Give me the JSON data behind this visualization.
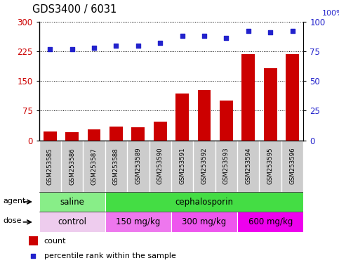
{
  "title": "GDS3400 / 6031",
  "samples": [
    "GSM253585",
    "GSM253586",
    "GSM253587",
    "GSM253588",
    "GSM253589",
    "GSM253590",
    "GSM253591",
    "GSM253592",
    "GSM253593",
    "GSM253594",
    "GSM253595",
    "GSM253596"
  ],
  "counts": [
    22,
    20,
    27,
    35,
    34,
    47,
    118,
    128,
    100,
    218,
    182,
    218
  ],
  "percentile_ranks": [
    77,
    77,
    78,
    80,
    80,
    82,
    88,
    88,
    86,
    92,
    91,
    92
  ],
  "ylim_left": [
    0,
    300
  ],
  "ylim_right": [
    0,
    100
  ],
  "yticks_left": [
    0,
    75,
    150,
    225,
    300
  ],
  "yticks_right": [
    0,
    25,
    50,
    75,
    100
  ],
  "bar_color": "#cc0000",
  "dot_color": "#2222cc",
  "agent_groups": [
    {
      "label": "saline",
      "start": 0,
      "end": 3,
      "color": "#88ee88"
    },
    {
      "label": "cephalosporin",
      "start": 3,
      "end": 12,
      "color": "#44dd44"
    }
  ],
  "dose_groups": [
    {
      "label": "control",
      "start": 0,
      "end": 3,
      "color": "#eeccee"
    },
    {
      "label": "150 mg/kg",
      "start": 3,
      "end": 6,
      "color": "#ee66ee"
    },
    {
      "label": "300 mg/kg",
      "start": 6,
      "end": 9,
      "color": "#ee55ee"
    },
    {
      "label": "600 mg/kg",
      "start": 9,
      "end": 12,
      "color": "#ee00ee"
    }
  ],
  "tick_label_color_left": "#cc0000",
  "tick_label_color_right": "#2222cc",
  "agent_label": "agent",
  "dose_label": "dose",
  "legend_count_label": "count",
  "legend_pct_label": "percentile rank within the sample",
  "background_color": "#ffffff",
  "xticklabel_bg": "#cccccc"
}
